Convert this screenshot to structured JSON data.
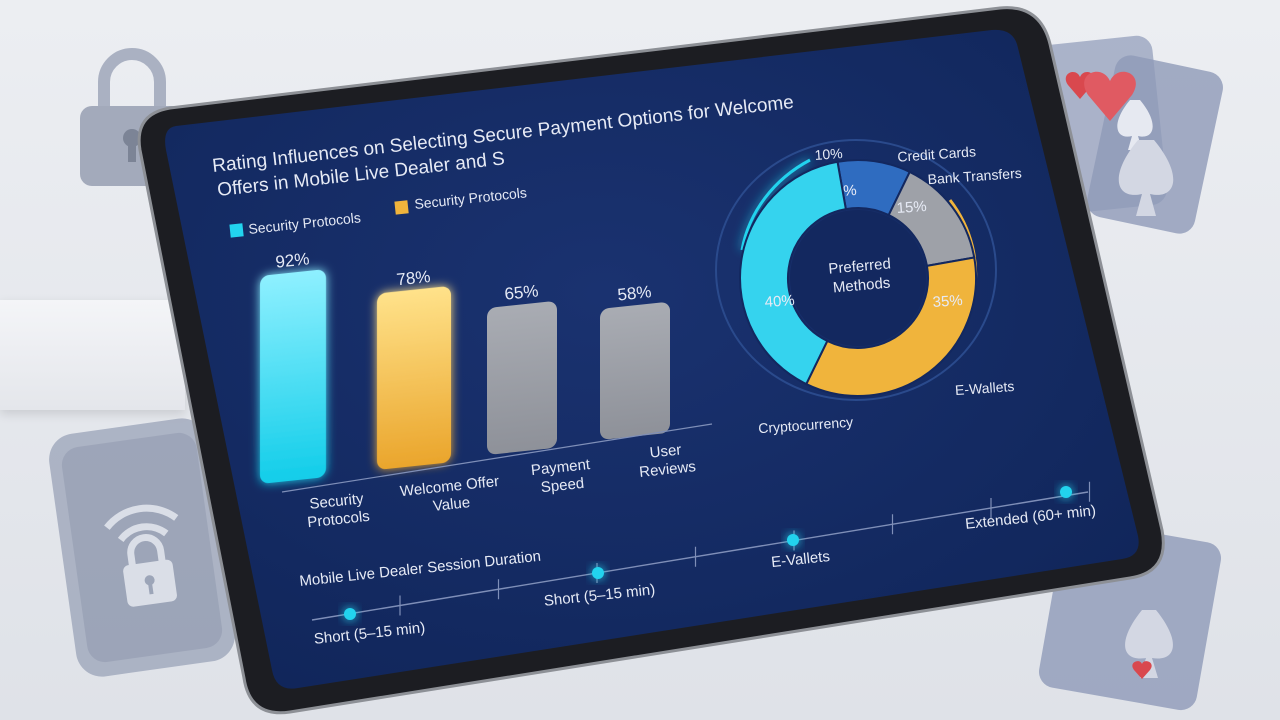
{
  "chart_data": [
    {
      "type": "bar",
      "title": "Rating Influences on Selecting Secure Payment Options for Welcome Offers in Mobile Live Dealer and S",
      "legend": [
        "Security Protocols",
        "Security Protocols"
      ],
      "categories": [
        "Security Protocols",
        "Welcome Offer Value",
        "Payment Speed",
        "User Reviews"
      ],
      "values": [
        92,
        78,
        65,
        58
      ],
      "value_labels": [
        "92%",
        "78%",
        "65%",
        "58%"
      ],
      "colors": [
        "#1fd0ee",
        "#f0b43c",
        "#9b9ea6",
        "#9b9ea6"
      ]
    },
    {
      "type": "pie",
      "center_label": "Preferred Methods",
      "slices": [
        {
          "label": "Credit Cards",
          "value": 10,
          "value_label": "10%",
          "color": "#2f6cc0"
        },
        {
          "label": "Bank Transfers",
          "value": 15,
          "value_label": "15%",
          "color": "#9ea1a8"
        },
        {
          "label": "E-Wallets",
          "value": 35,
          "value_label": "35%",
          "color": "#f0b43c"
        },
        {
          "label": "Cryptocurrency",
          "value": 40,
          "value_label": "40%",
          "color": "#35d3ee"
        }
      ],
      "outer_label": "10%"
    },
    {
      "type": "line",
      "title": "Mobile Live Dealer Session Duration",
      "points": [
        {
          "label": "Short (5–15 min)"
        },
        {
          "label": "Short (5–15 min)"
        },
        {
          "label": "E-Vallets"
        },
        {
          "label": "Extended (60+ min)"
        }
      ]
    }
  ],
  "colors": {
    "screen": "#13285f",
    "accent_cyan": "#22d3ee",
    "accent_gold": "#f0b43c"
  }
}
